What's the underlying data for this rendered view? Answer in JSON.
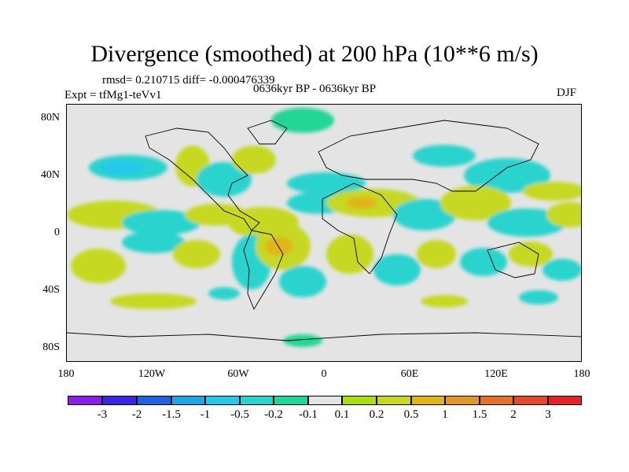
{
  "title": "Divergence (smoothed) at 200 hPa (10**6 m/s)",
  "stats": "rmsd= 0.210715 diff= -0.000476339",
  "experiment": "Expt = tfMg1-teVv1",
  "period": "0636kyr BP - 0636kyr BP",
  "season": "DJF",
  "lat_labels": [
    "80N",
    "40N",
    "0",
    "40S",
    "80S"
  ],
  "lon_labels": [
    "180",
    "120W",
    "60W",
    "0",
    "60E",
    "120E",
    "180"
  ],
  "colorbar": {
    "colors": [
      "#8a1ee8",
      "#3c26e0",
      "#1e64dc",
      "#1ea6e4",
      "#27c8e8",
      "#2ad3ce",
      "#22d696",
      "#e4e4e4",
      "#a9df12",
      "#c7d824",
      "#e0b51a",
      "#e19628",
      "#e4712a",
      "#e4482b",
      "#e4222a"
    ],
    "labels": [
      "-3",
      "-2",
      "-1.5",
      "-1",
      "-0.5",
      "-0.2",
      "-0.1",
      "0.1",
      "0.2",
      "0.5",
      "1",
      "1.5",
      "2",
      "3"
    ]
  }
}
